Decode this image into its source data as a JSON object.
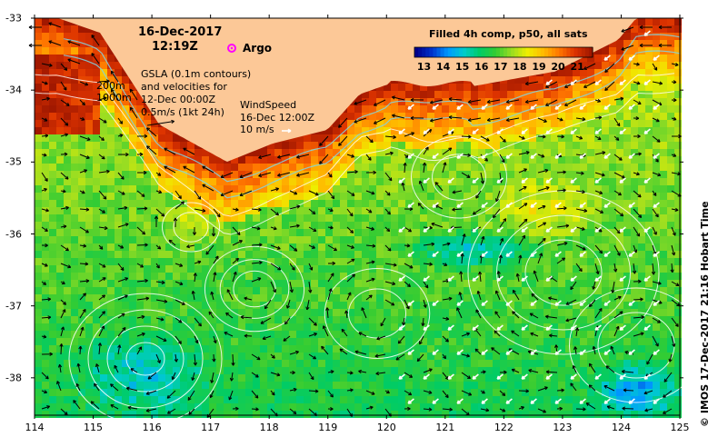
{
  "header": {
    "date": "16-Dec-2017",
    "time": "12:19Z"
  },
  "argo_label": "Argo",
  "contour_labels": {
    "shallow": "200m",
    "deep": "1000m"
  },
  "gsla_lines": [
    "GSLA (0.1m contours)",
    "and velocities for",
    "12-Dec 00:00Z",
    "0.5m/s (1kt 24h)"
  ],
  "wind_lines": [
    "WindSpeed",
    "16-Dec 12:00Z",
    "10 m/s"
  ],
  "legend": {
    "title": "Filled 4h comp, p50, all sats",
    "ticks": [
      "13",
      "14",
      "15",
      "16",
      "17",
      "18",
      "19",
      "20",
      "21"
    ],
    "range_c": [
      12.5,
      21.8
    ]
  },
  "y_axis": {
    "ticks": [
      "-33",
      "-34",
      "-35",
      "-36",
      "-37",
      "-38"
    ],
    "values": [
      -33,
      -34,
      -35,
      -36,
      -37,
      -38
    ]
  },
  "x_axis": {
    "ticks": [
      "114",
      "115",
      "116",
      "117",
      "118",
      "119",
      "120",
      "121",
      "122",
      "123",
      "124",
      "125"
    ],
    "values": [
      114,
      115,
      116,
      117,
      118,
      119,
      120,
      121,
      122,
      123,
      124,
      125
    ]
  },
  "credit": "© IMOS 17-Dec-2017 21:16 Hobart Time",
  "colors": {
    "land": "#fcc897",
    "contour": "#ffffff",
    "bathy": "#7fd6e6",
    "argo": "#ff00ff",
    "colormap": [
      "#00008b",
      "#0033cc",
      "#0099ff",
      "#00cccc",
      "#00cc66",
      "#33cc33",
      "#99dd22",
      "#eeee00",
      "#ffbb00",
      "#ff7700",
      "#dd3300",
      "#a01800"
    ]
  }
}
